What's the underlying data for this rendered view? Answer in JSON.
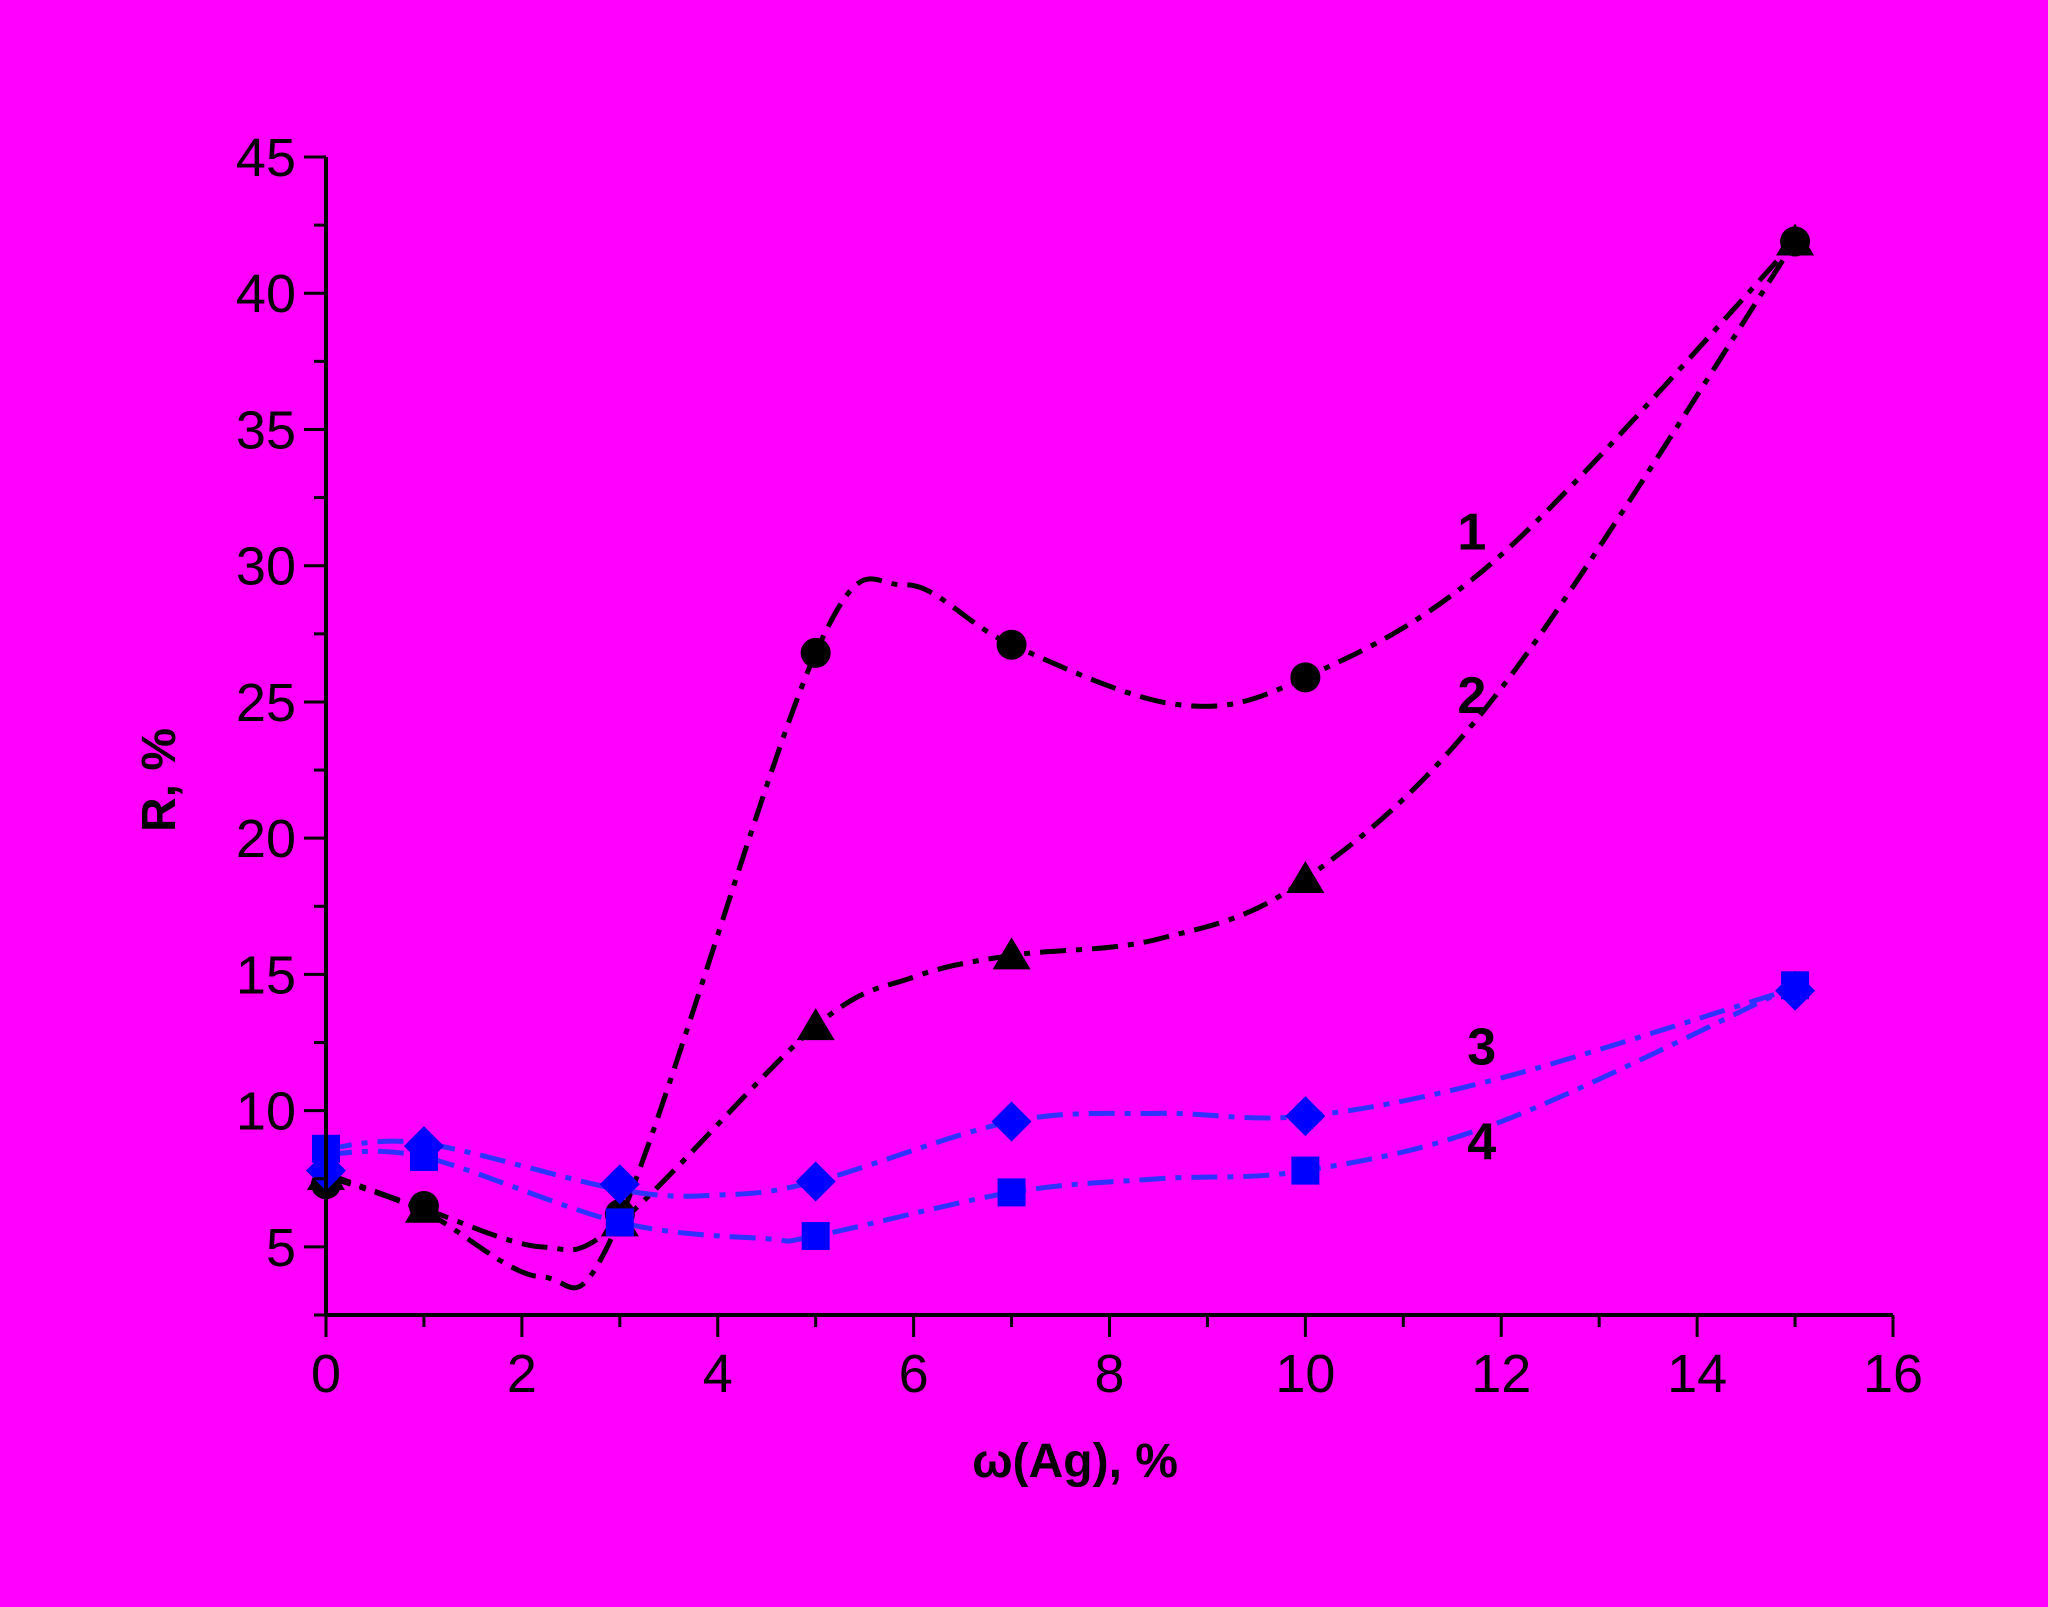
{
  "chart_data": {
    "type": "line",
    "title": "",
    "xlabel": "ω(Ag), %",
    "ylabel": "R, %",
    "xlim": [
      0,
      16
    ],
    "ylim": [
      2.5,
      45
    ],
    "x_ticks": [
      0,
      2,
      4,
      6,
      8,
      10,
      12,
      14,
      16
    ],
    "y_ticks": [
      5,
      10,
      15,
      20,
      25,
      30,
      35,
      40,
      45
    ],
    "grid": false,
    "legend": "none",
    "background_color": "#FF00FF",
    "series": [
      {
        "name": "1",
        "marker": "circle",
        "color": "#000000",
        "x": [
          0,
          1,
          3,
          5,
          7,
          10,
          15
        ],
        "y": [
          7.3,
          6.5,
          6.2,
          26.8,
          27.1,
          25.9,
          41.9
        ],
        "curve_points": [
          [
            0,
            7.6
          ],
          [
            1,
            6.3
          ],
          [
            2.2,
            3.9
          ],
          [
            3,
            6.0
          ],
          [
            5,
            26.8
          ],
          [
            5.9,
            29.3
          ],
          [
            7,
            27.1
          ],
          [
            8.7,
            24.9
          ],
          [
            10,
            25.9
          ],
          [
            12,
            30.4
          ],
          [
            15,
            41.9
          ]
        ],
        "label_pos": [
          11.7,
          30.6
        ]
      },
      {
        "name": "2",
        "marker": "triangle",
        "color": "#000000",
        "x": [
          0,
          1,
          3,
          5,
          7,
          10,
          15
        ],
        "y": [
          7.6,
          6.4,
          5.9,
          13.1,
          15.7,
          18.5,
          41.9
        ],
        "curve_points": [
          [
            0,
            7.7
          ],
          [
            1,
            6.4
          ],
          [
            2.2,
            5.0
          ],
          [
            3,
            5.9
          ],
          [
            5,
            13.1
          ],
          [
            6,
            14.9
          ],
          [
            7,
            15.7
          ],
          [
            8.5,
            16.3
          ],
          [
            10,
            18.5
          ],
          [
            12,
            25.5
          ],
          [
            15,
            41.9
          ]
        ],
        "label_pos": [
          11.7,
          24.6
        ]
      },
      {
        "name": "3",
        "marker": "diamond",
        "color": "#0000FF",
        "x": [
          0,
          1,
          3,
          5,
          7,
          10,
          15
        ],
        "y": [
          7.8,
          8.7,
          7.3,
          7.4,
          9.6,
          9.8,
          14.4
        ],
        "curve_points": [
          [
            0,
            8.6
          ],
          [
            1,
            8.8
          ],
          [
            3,
            7.1
          ],
          [
            4,
            6.9
          ],
          [
            5,
            7.4
          ],
          [
            7,
            9.6
          ],
          [
            8.5,
            9.9
          ],
          [
            10,
            9.8
          ],
          [
            12,
            11.2
          ],
          [
            15,
            14.5
          ]
        ],
        "label_pos": [
          11.8,
          11.7
        ]
      },
      {
        "name": "4",
        "marker": "square",
        "color": "#0000FF",
        "x": [
          0,
          1,
          3,
          5,
          7,
          10,
          15
        ],
        "y": [
          8.6,
          8.3,
          5.9,
          5.4,
          7.0,
          7.8,
          14.6
        ],
        "curve_points": [
          [
            0,
            8.4
          ],
          [
            1,
            8.3
          ],
          [
            3,
            5.9
          ],
          [
            4.5,
            5.3
          ],
          [
            5,
            5.4
          ],
          [
            7,
            7.0
          ],
          [
            8.5,
            7.5
          ],
          [
            10,
            7.8
          ],
          [
            12,
            9.6
          ],
          [
            15,
            14.6
          ]
        ],
        "label_pos": [
          11.8,
          8.2
        ]
      }
    ]
  }
}
